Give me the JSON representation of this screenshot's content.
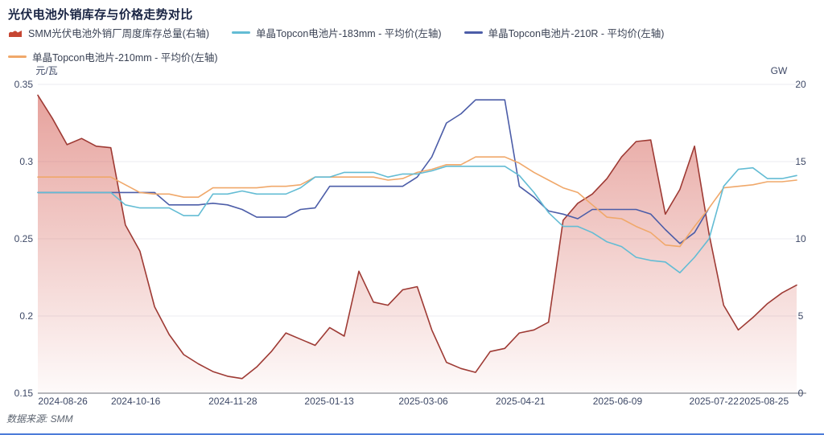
{
  "title": "光伏电池外销库存与价格走势对比",
  "source": "数据来源: SMM",
  "legend": {
    "items": [
      {
        "label": "SMM光伏电池外销厂周度库存总量(右轴)",
        "marker": "area",
        "color": "#c64632"
      },
      {
        "label": "单晶Topcon电池片-183mm - 平均价(左轴)",
        "marker": "line",
        "color": "#63bcd4"
      },
      {
        "label": "单晶Topcon电池片-210R - 平均价(左轴)",
        "marker": "line",
        "color": "#4c5da8"
      },
      {
        "label": "单晶Topcon电池片-210mm - 平均价(左轴)",
        "marker": "line",
        "color": "#f0a86a"
      }
    ]
  },
  "styles": {
    "grid": "#ebebf0",
    "axis_line": "#6e7079",
    "tick_text": "#3d4866",
    "source_color": "#5c6470",
    "accent_bar": "#4c7cd9",
    "background": "#ffffff"
  },
  "chart_data": {
    "type": "area+line, dual axis, weekly points",
    "x_ticks": [
      {
        "label": "2024-08-26",
        "f": 0.033
      },
      {
        "label": "2024-10-16",
        "f": 0.129
      },
      {
        "label": "2024-11-28",
        "f": 0.257
      },
      {
        "label": "2025-01-13",
        "f": 0.384
      },
      {
        "label": "2025-03-06",
        "f": 0.508
      },
      {
        "label": "2025-04-21",
        "f": 0.636
      },
      {
        "label": "2025-06-09",
        "f": 0.764
      },
      {
        "label": "2025-07-22",
        "f": 0.891
      },
      {
        "label": "2025-08-25",
        "f": 0.957
      }
    ],
    "y_left": {
      "name": "元/瓦",
      "min": 0.15,
      "max": 0.35,
      "ticks": [
        "0.35",
        "0.3",
        "0.25",
        "0.2",
        "0.15"
      ]
    },
    "y_right": {
      "name": "GW",
      "min": 0,
      "max": 20,
      "ticks": [
        "20",
        "15",
        "10",
        "5",
        "0"
      ]
    },
    "series": [
      {
        "name": "SMM光伏电池外销厂周度库存总量(右轴)",
        "axis": "right",
        "type": "area",
        "unit": "GW",
        "color": "#9e3a34",
        "fill_top": "rgba(214,100,91,0.60)",
        "fill_bottom": "rgba(214,100,91,0.03)",
        "values": [
          19.3,
          17.8,
          16.1,
          16.5,
          16.0,
          15.9,
          10.9,
          9.2,
          5.6,
          3.8,
          2.5,
          1.9,
          1.4,
          1.1,
          0.95,
          1.7,
          2.7,
          3.9,
          3.5,
          3.1,
          4.25,
          3.7,
          7.9,
          5.9,
          5.7,
          6.7,
          6.9,
          4.1,
          2.0,
          1.6,
          1.35,
          2.7,
          2.9,
          3.9,
          4.1,
          4.6,
          11.2,
          12.3,
          12.9,
          13.9,
          15.3,
          16.3,
          16.4,
          11.6,
          13.2,
          16.0,
          10.3,
          5.7,
          4.1,
          4.9,
          5.8,
          6.5,
          7.0
        ]
      },
      {
        "name": "单晶Topcon电池片-210R - 平均价(左轴)",
        "axis": "left",
        "type": "line",
        "unit": "元/瓦",
        "color": "#4c5da8",
        "values": [
          0.28,
          0.28,
          0.28,
          0.28,
          0.28,
          0.28,
          0.28,
          0.28,
          0.28,
          0.272,
          0.272,
          0.272,
          0.273,
          0.272,
          0.269,
          0.264,
          0.264,
          0.264,
          0.269,
          0.27,
          0.284,
          0.284,
          0.284,
          0.284,
          0.284,
          0.284,
          0.29,
          0.303,
          0.325,
          0.331,
          0.34,
          0.34,
          0.34,
          0.284,
          0.277,
          0.268,
          0.266,
          0.263,
          0.269,
          0.269,
          0.269,
          0.269,
          0.266,
          0.256,
          0.247,
          0.254,
          0.27,
          null,
          null,
          null,
          null,
          null,
          null
        ]
      },
      {
        "name": "单晶Topcon电池片-210mm - 平均价(左轴)",
        "axis": "left",
        "type": "line",
        "unit": "元/瓦",
        "color": "#f0a86a",
        "values": [
          0.29,
          0.29,
          0.29,
          0.29,
          0.29,
          0.29,
          0.285,
          0.28,
          0.279,
          0.279,
          0.277,
          0.277,
          0.283,
          0.283,
          0.283,
          0.283,
          0.284,
          0.284,
          0.285,
          0.29,
          0.29,
          0.29,
          0.29,
          0.29,
          0.288,
          0.289,
          0.293,
          0.295,
          0.298,
          0.298,
          0.303,
          0.303,
          0.303,
          0.299,
          0.293,
          0.288,
          0.283,
          0.28,
          0.272,
          0.264,
          0.263,
          0.258,
          0.254,
          0.246,
          0.245,
          0.258,
          0.27,
          0.283,
          0.284,
          0.285,
          0.287,
          0.287,
          0.288
        ]
      },
      {
        "name": "单晶Topcon电池片-183mm - 平均价(左轴)",
        "axis": "left",
        "type": "line",
        "unit": "元/瓦",
        "color": "#63bcd4",
        "values": [
          0.28,
          0.28,
          0.28,
          0.28,
          0.28,
          0.28,
          0.272,
          0.27,
          0.27,
          0.27,
          0.265,
          0.265,
          0.279,
          0.279,
          0.281,
          0.279,
          0.279,
          0.279,
          0.283,
          0.29,
          0.29,
          0.293,
          0.293,
          0.293,
          0.29,
          0.292,
          0.292,
          0.294,
          0.297,
          0.297,
          0.297,
          0.297,
          0.297,
          0.291,
          0.28,
          0.267,
          0.258,
          0.258,
          0.254,
          0.248,
          0.245,
          0.238,
          0.236,
          0.235,
          0.228,
          0.238,
          0.25,
          0.284,
          0.295,
          0.296,
          0.289,
          0.289,
          0.291
        ]
      }
    ]
  }
}
